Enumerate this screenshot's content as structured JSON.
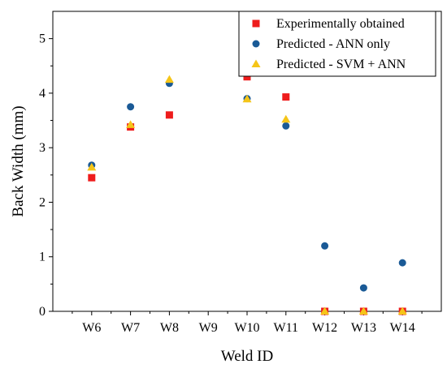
{
  "chart_data": {
    "type": "scatter",
    "title": "",
    "xlabel": "Weld ID",
    "ylabel": "Back Width (mm)",
    "categories": [
      "W6",
      "W7",
      "W8",
      "W9",
      "W10",
      "W11",
      "W12",
      "W13",
      "W14"
    ],
    "ylim": [
      0,
      5.5
    ],
    "yticks": [
      0,
      1,
      2,
      3,
      4,
      5
    ],
    "grid": false,
    "legend_position": "top-right",
    "series": [
      {
        "name": "Experimentally obtained",
        "marker": "square",
        "color": "#ee1c1c",
        "values": [
          2.45,
          3.38,
          3.6,
          null,
          4.3,
          3.93,
          0,
          0,
          0
        ]
      },
      {
        "name": "Predicted - ANN only",
        "marker": "circle",
        "color": "#1a5a96",
        "values": [
          2.68,
          3.75,
          4.18,
          null,
          3.9,
          3.4,
          1.2,
          0.43,
          0.89
        ]
      },
      {
        "name": "Predicted - SVM + ANN",
        "marker": "triangle",
        "color": "#f5c518",
        "values": [
          2.64,
          3.42,
          4.25,
          null,
          3.89,
          3.52,
          0,
          0,
          0
        ]
      }
    ]
  }
}
